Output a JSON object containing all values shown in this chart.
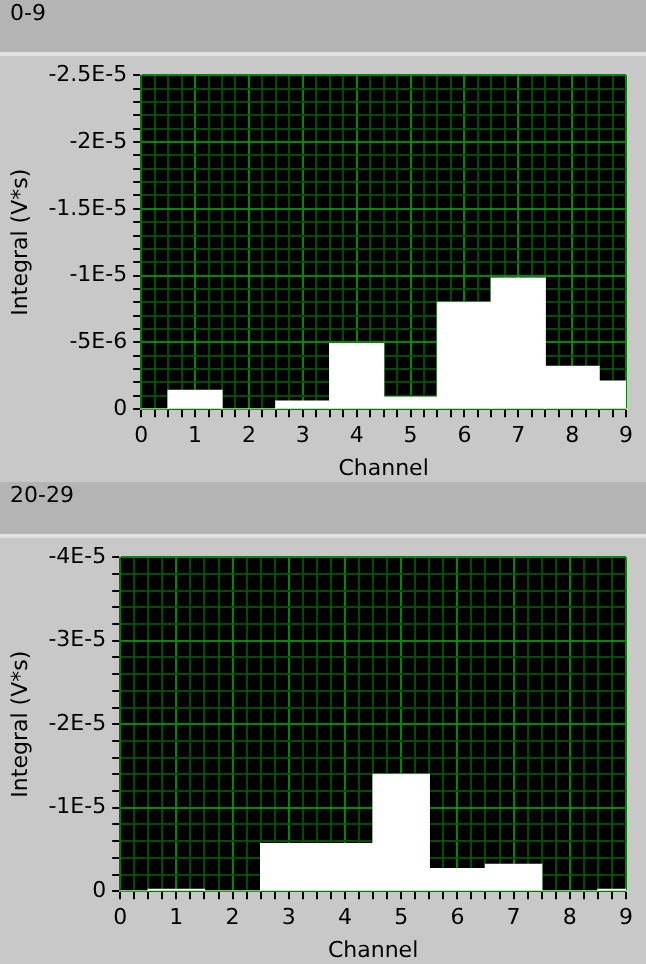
{
  "chart_data": [
    {
      "type": "bar",
      "title": "0-9",
      "xlabel": "Channel",
      "ylabel": "Integral (V*s)",
      "x": [
        0,
        1,
        2,
        3,
        4,
        5,
        6,
        7,
        8,
        9
      ],
      "values": [
        0,
        -1.4e-06,
        0,
        -6e-07,
        -4.9e-06,
        -9e-07,
        -8e-06,
        -9.8e-06,
        -3.2e-06,
        -2.1e-06
      ],
      "color": "#ffffff",
      "xlim": [
        0,
        9
      ],
      "xticks": [
        0,
        {
          "value": 0.25,
          "label": null
        },
        {
          "value": 0.5,
          "label": null
        },
        {
          "value": 0.75,
          "label": null
        },
        1,
        {
          "value": 1.25,
          "label": null
        },
        {
          "value": 1.5,
          "label": null
        },
        {
          "value": 1.75,
          "label": null
        },
        2,
        {
          "value": 2.25,
          "label": null
        },
        {
          "value": 2.5,
          "label": null
        },
        {
          "value": 2.75,
          "label": null
        },
        3,
        {
          "value": 3.25,
          "label": null
        },
        {
          "value": 3.5,
          "label": null
        },
        {
          "value": 3.75,
          "label": null
        },
        4,
        {
          "value": 4.25,
          "label": null
        },
        {
          "value": 4.5,
          "label": null
        },
        {
          "value": 4.75,
          "label": null
        },
        5,
        {
          "value": 5.25,
          "label": null
        },
        {
          "value": 5.5,
          "label": null
        },
        {
          "value": 5.75,
          "label": null
        },
        6,
        {
          "value": 6.25,
          "label": null
        },
        {
          "value": 6.5,
          "label": null
        },
        {
          "value": 6.75,
          "label": null
        },
        7,
        {
          "value": 7.25,
          "label": null
        },
        {
          "value": 7.5,
          "label": null
        },
        {
          "value": 7.75,
          "label": null
        },
        8,
        {
          "value": 8.25,
          "label": null
        },
        {
          "value": 8.5,
          "label": null
        },
        {
          "value": 8.75,
          "label": null
        },
        9
      ],
      "ylim": [
        0,
        -2.5e-05
      ],
      "yticks": [
        {
          "value": 0,
          "label": "0"
        },
        {
          "value": -1e-06,
          "label": null
        },
        {
          "value": -2e-06,
          "label": null
        },
        {
          "value": -3e-06,
          "label": null
        },
        {
          "value": -4e-06,
          "label": null
        },
        {
          "value": -5e-06,
          "label": "-5E-6"
        },
        {
          "value": -6e-06,
          "label": null
        },
        {
          "value": -7e-06,
          "label": null
        },
        {
          "value": -8e-06,
          "label": null
        },
        {
          "value": -9e-06,
          "label": null
        },
        {
          "value": -1e-05,
          "label": "-1E-5"
        },
        {
          "value": -1.1e-05,
          "label": null
        },
        {
          "value": -1.2e-05,
          "label": null
        },
        {
          "value": -1.3e-05,
          "label": null
        },
        {
          "value": -1.4e-05,
          "label": null
        },
        {
          "value": -1.5e-05,
          "label": "-1.5E-5"
        },
        {
          "value": -1.6e-05,
          "label": null
        },
        {
          "value": -1.7e-05,
          "label": null
        },
        {
          "value": -1.8e-05,
          "label": null
        },
        {
          "value": -1.9e-05,
          "label": null
        },
        {
          "value": -2e-05,
          "label": "-2E-5"
        },
        {
          "value": -2.1e-05,
          "label": null
        },
        {
          "value": -2.2e-05,
          "label": null
        },
        {
          "value": -2.3e-05,
          "label": null
        },
        {
          "value": -2.4e-05,
          "label": null
        },
        {
          "value": -2.5e-05,
          "label": "-2.5E-5"
        }
      ],
      "grid": true
    },
    {
      "type": "bar",
      "title": "20-29",
      "xlabel": "Channel",
      "ylabel": "Integral (V*s)",
      "x": [
        0,
        1,
        2,
        3,
        4,
        5,
        6,
        7,
        8,
        9
      ],
      "values": [
        0,
        -2e-07,
        0,
        -5.7e-06,
        -5.7e-06,
        -1.4e-05,
        -2.7e-06,
        -3.2e-06,
        0,
        -2e-07
      ],
      "color": "#ffffff",
      "xlim": [
        0,
        9
      ],
      "xticks": [
        0,
        {
          "value": 0.25,
          "label": null
        },
        {
          "value": 0.5,
          "label": null
        },
        {
          "value": 0.75,
          "label": null
        },
        1,
        {
          "value": 1.25,
          "label": null
        },
        {
          "value": 1.5,
          "label": null
        },
        {
          "value": 1.75,
          "label": null
        },
        2,
        {
          "value": 2.25,
          "label": null
        },
        {
          "value": 2.5,
          "label": null
        },
        {
          "value": 2.75,
          "label": null
        },
        3,
        {
          "value": 3.25,
          "label": null
        },
        {
          "value": 3.5,
          "label": null
        },
        {
          "value": 3.75,
          "label": null
        },
        4,
        {
          "value": 4.25,
          "label": null
        },
        {
          "value": 4.5,
          "label": null
        },
        {
          "value": 4.75,
          "label": null
        },
        5,
        {
          "value": 5.25,
          "label": null
        },
        {
          "value": 5.5,
          "label": null
        },
        {
          "value": 5.75,
          "label": null
        },
        6,
        {
          "value": 6.25,
          "label": null
        },
        {
          "value": 6.5,
          "label": null
        },
        {
          "value": 6.75,
          "label": null
        },
        7,
        {
          "value": 7.25,
          "label": null
        },
        {
          "value": 7.5,
          "label": null
        },
        {
          "value": 7.75,
          "label": null
        },
        8,
        {
          "value": 8.25,
          "label": null
        },
        {
          "value": 8.5,
          "label": null
        },
        {
          "value": 8.75,
          "label": null
        },
        9
      ],
      "ylim": [
        0,
        -4e-05
      ],
      "yticks": [
        {
          "value": 0,
          "label": "0"
        },
        {
          "value": -2e-06,
          "label": null
        },
        {
          "value": -4e-06,
          "label": null
        },
        {
          "value": -6e-06,
          "label": null
        },
        {
          "value": -8e-06,
          "label": null
        },
        {
          "value": -1e-05,
          "label": "-1E-5"
        },
        {
          "value": -1.2e-05,
          "label": null
        },
        {
          "value": -1.4e-05,
          "label": null
        },
        {
          "value": -1.6e-05,
          "label": null
        },
        {
          "value": -1.8e-05,
          "label": null
        },
        {
          "value": -2e-05,
          "label": "-2E-5"
        },
        {
          "value": -2.2e-05,
          "label": null
        },
        {
          "value": -2.4e-05,
          "label": null
        },
        {
          "value": -2.6e-05,
          "label": null
        },
        {
          "value": -2.8e-05,
          "label": null
        },
        {
          "value": -3e-05,
          "label": "-3E-5"
        },
        {
          "value": -3.2e-05,
          "label": null
        },
        {
          "value": -3.4e-05,
          "label": null
        },
        {
          "value": -3.6e-05,
          "label": null
        },
        {
          "value": -3.8e-05,
          "label": null
        },
        {
          "value": -4e-05,
          "label": "-4E-5"
        }
      ],
      "grid": true
    }
  ]
}
